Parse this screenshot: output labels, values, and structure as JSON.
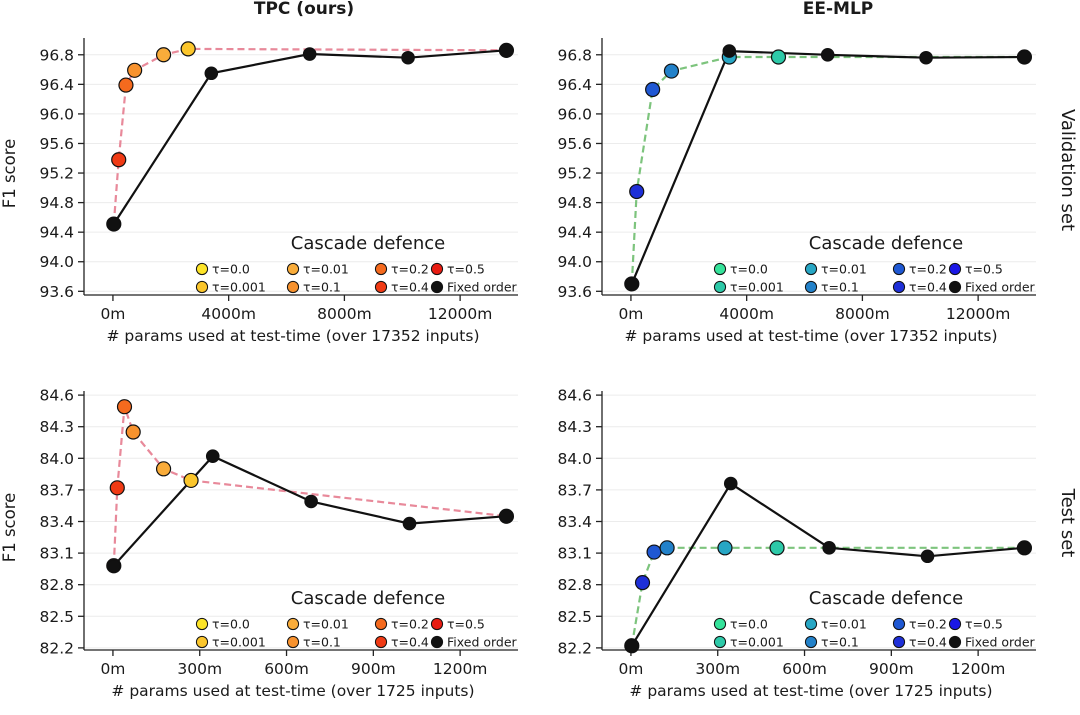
{
  "figure": {
    "column_titles": [
      {
        "text": "TPC (ours)",
        "color": "#dc143c"
      },
      {
        "text": "EE-MLP",
        "color": "#189818"
      }
    ],
    "row_labels": [
      "Validation set",
      "Test set"
    ]
  },
  "chart_data": [
    {
      "type": "line",
      "row": 0,
      "col": 0,
      "ylabel": "F1 score",
      "xlabel": "# params used at test-time (over 17352 inputs)",
      "xlim": [
        -1000,
        14000
      ],
      "ylim": [
        93.55,
        97.0
      ],
      "xticks": [
        0,
        4000,
        8000,
        12000
      ],
      "xtick_labels": [
        "0m",
        "4000m",
        "8000m",
        "12000m"
      ],
      "yticks": [
        93.6,
        94.0,
        94.4,
        94.8,
        95.2,
        95.6,
        96.0,
        96.4,
        96.8
      ],
      "ytick_labels": [
        "93.6",
        "94.0",
        "94.4",
        "94.8",
        "95.2",
        "95.6",
        "96.0",
        "96.4",
        "96.8"
      ],
      "grid": true,
      "cascade_line_color": "#e8899a",
      "series": [
        {
          "name": "Cascade defence",
          "style": "dashed",
          "color": "#e8899a",
          "points": [
            {
              "x": 30,
              "y": 94.51,
              "label": "τ=0.5",
              "color": "#e81c12"
            },
            {
              "x": 200,
              "y": 95.38,
              "label": "τ=0.4",
              "color": "#f03a14"
            },
            {
              "x": 450,
              "y": 96.39,
              "label": "τ=0.2",
              "color": "#f56a1e"
            },
            {
              "x": 750,
              "y": 96.59,
              "label": "τ=0.1",
              "color": "#f7922e"
            },
            {
              "x": 1750,
              "y": 96.8,
              "label": "τ=0.01",
              "color": "#f9ac3a"
            },
            {
              "x": 2600,
              "y": 96.88,
              "label": "τ=0.001",
              "color": "#fbc62c"
            },
            {
              "x": 13600,
              "y": 96.86,
              "label": "τ=0.0",
              "color": "#fde428"
            }
          ]
        },
        {
          "name": "Fixed order",
          "style": "solid",
          "color": "#111111",
          "points": [
            {
              "x": 30,
              "y": 94.51
            },
            {
              "x": 3400,
              "y": 96.55
            },
            {
              "x": 6800,
              "y": 96.81
            },
            {
              "x": 10200,
              "y": 96.76
            },
            {
              "x": 13600,
              "y": 96.86
            }
          ]
        }
      ],
      "legend": {
        "title": "Cascade defence",
        "entries": [
          {
            "label": "τ=0.0",
            "color": "#fde428"
          },
          {
            "label": "τ=0.01",
            "color": "#f9ac3a"
          },
          {
            "label": "τ=0.2",
            "color": "#f56a1e"
          },
          {
            "label": "τ=0.5",
            "color": "#e81c12"
          },
          {
            "label": "τ=0.001",
            "color": "#fbc62c"
          },
          {
            "label": "τ=0.1",
            "color": "#f7922e"
          },
          {
            "label": "τ=0.4",
            "color": "#f03a14"
          },
          {
            "label": "Fixed order",
            "color": "#111111"
          }
        ]
      }
    },
    {
      "type": "line",
      "row": 0,
      "col": 1,
      "ylabel": "",
      "xlabel": "# params used at test-time (over 17352 inputs)",
      "xlim": [
        -1000,
        14000
      ],
      "ylim": [
        93.55,
        97.0
      ],
      "xticks": [
        0,
        4000,
        8000,
        12000
      ],
      "xtick_labels": [
        "0m",
        "4000m",
        "8000m",
        "12000m"
      ],
      "yticks": [
        93.6,
        94.0,
        94.4,
        94.8,
        95.2,
        95.6,
        96.0,
        96.4,
        96.8
      ],
      "ytick_labels": [
        "93.6",
        "94.0",
        "94.4",
        "94.8",
        "95.2",
        "95.6",
        "96.0",
        "96.4",
        "96.8"
      ],
      "grid": true,
      "series": [
        {
          "name": "Cascade defence",
          "style": "dashed",
          "color": "#7dc47d",
          "points": [
            {
              "x": 30,
              "y": 93.7,
              "label": "τ=0.5",
              "color": "#1a17e6"
            },
            {
              "x": 200,
              "y": 94.95,
              "label": "τ=0.4",
              "color": "#1e2fd8"
            },
            {
              "x": 750,
              "y": 96.33,
              "label": "τ=0.2",
              "color": "#1f58d3"
            },
            {
              "x": 1400,
              "y": 96.58,
              "label": "τ=0.1",
              "color": "#2281c9"
            },
            {
              "x": 3400,
              "y": 96.77,
              "label": "τ=0.01",
              "color": "#27a6c4"
            },
            {
              "x": 5100,
              "y": 96.77,
              "label": "τ=0.001",
              "color": "#2dc9a8"
            },
            {
              "x": 13600,
              "y": 96.77,
              "label": "τ=0.0",
              "color": "#35e29a"
            }
          ]
        },
        {
          "name": "Fixed order",
          "style": "solid",
          "color": "#111111",
          "points": [
            {
              "x": 30,
              "y": 93.7
            },
            {
              "x": 3400,
              "y": 96.85
            },
            {
              "x": 6800,
              "y": 96.8
            },
            {
              "x": 10200,
              "y": 96.76
            },
            {
              "x": 13600,
              "y": 96.77
            }
          ]
        }
      ],
      "legend": {
        "title": "Cascade defence",
        "entries": [
          {
            "label": "τ=0.0",
            "color": "#35e29a"
          },
          {
            "label": "τ=0.01",
            "color": "#27a6c4"
          },
          {
            "label": "τ=0.2",
            "color": "#1f58d3"
          },
          {
            "label": "τ=0.5",
            "color": "#1a17e6"
          },
          {
            "label": "τ=0.001",
            "color": "#2dc9a8"
          },
          {
            "label": "τ=0.1",
            "color": "#2281c9"
          },
          {
            "label": "τ=0.4",
            "color": "#1e2fd8"
          },
          {
            "label": "Fixed order",
            "color": "#111111"
          }
        ]
      }
    },
    {
      "type": "line",
      "row": 1,
      "col": 0,
      "ylabel": "F1 score",
      "xlabel": "# params used at test-time (over 1725 inputs)",
      "xlim": [
        -100,
        1400
      ],
      "ylim": [
        82.18,
        84.62
      ],
      "xticks": [
        0,
        300,
        600,
        900,
        1200
      ],
      "xtick_labels": [
        "0m",
        "300m",
        "600m",
        "900m",
        "1200m"
      ],
      "yticks": [
        82.2,
        82.5,
        82.8,
        83.1,
        83.4,
        83.7,
        84.0,
        84.3,
        84.6
      ],
      "ytick_labels": [
        "82.2",
        "82.5",
        "82.8",
        "83.1",
        "83.4",
        "83.7",
        "84.0",
        "84.3",
        "84.6"
      ],
      "grid": true,
      "series": [
        {
          "name": "Cascade defence",
          "style": "dashed",
          "color": "#e8899a",
          "points": [
            {
              "x": 3,
              "y": 82.98,
              "label": "τ=0.5",
              "color": "#e81c12"
            },
            {
              "x": 15,
              "y": 83.72,
              "label": "τ=0.4",
              "color": "#f03a14"
            },
            {
              "x": 40,
              "y": 84.49,
              "label": "τ=0.2",
              "color": "#f56a1e"
            },
            {
              "x": 70,
              "y": 84.25,
              "label": "τ=0.1",
              "color": "#f7922e"
            },
            {
              "x": 175,
              "y": 83.9,
              "label": "τ=0.01",
              "color": "#f9ac3a"
            },
            {
              "x": 270,
              "y": 83.79,
              "label": "τ=0.001",
              "color": "#fbc62c"
            },
            {
              "x": 1360,
              "y": 83.45,
              "label": "τ=0.0",
              "color": "#fde428"
            }
          ]
        },
        {
          "name": "Fixed order",
          "style": "solid",
          "color": "#111111",
          "points": [
            {
              "x": 3,
              "y": 82.98
            },
            {
              "x": 345,
              "y": 84.02
            },
            {
              "x": 685,
              "y": 83.59
            },
            {
              "x": 1025,
              "y": 83.38
            },
            {
              "x": 1360,
              "y": 83.45
            }
          ]
        }
      ],
      "legend": {
        "title": "Cascade defence",
        "entries": [
          {
            "label": "τ=0.0",
            "color": "#fde428"
          },
          {
            "label": "τ=0.01",
            "color": "#f9ac3a"
          },
          {
            "label": "τ=0.2",
            "color": "#f56a1e"
          },
          {
            "label": "τ=0.5",
            "color": "#e81c12"
          },
          {
            "label": "τ=0.001",
            "color": "#fbc62c"
          },
          {
            "label": "τ=0.1",
            "color": "#f7922e"
          },
          {
            "label": "τ=0.4",
            "color": "#f03a14"
          },
          {
            "label": "Fixed order",
            "color": "#111111"
          }
        ]
      }
    },
    {
      "type": "line",
      "row": 1,
      "col": 1,
      "ylabel": "",
      "xlabel": "# params used at test-time (over 1725 inputs)",
      "xlim": [
        -100,
        1400
      ],
      "ylim": [
        82.18,
        84.62
      ],
      "xticks": [
        0,
        300,
        600,
        900,
        1200
      ],
      "xtick_labels": [
        "0m",
        "300m",
        "600m",
        "900m",
        "1200m"
      ],
      "yticks": [
        82.2,
        82.5,
        82.8,
        83.1,
        83.4,
        83.7,
        84.0,
        84.3,
        84.6
      ],
      "ytick_labels": [
        "82.2",
        "82.5",
        "82.8",
        "83.1",
        "83.4",
        "83.7",
        "84.0",
        "84.3",
        "84.6"
      ],
      "grid": true,
      "series": [
        {
          "name": "Cascade defence",
          "style": "dashed",
          "color": "#7dc47d",
          "points": [
            {
              "x": 3,
              "y": 82.22,
              "label": "τ=0.5",
              "color": "#1a17e6"
            },
            {
              "x": 40,
              "y": 82.82,
              "label": "τ=0.4",
              "color": "#1e2fd8"
            },
            {
              "x": 80,
              "y": 83.11,
              "label": "τ=0.2",
              "color": "#1f58d3"
            },
            {
              "x": 125,
              "y": 83.15,
              "label": "τ=0.1",
              "color": "#2281c9"
            },
            {
              "x": 325,
              "y": 83.15,
              "label": "τ=0.01",
              "color": "#27a6c4"
            },
            {
              "x": 505,
              "y": 83.15,
              "label": "τ=0.001",
              "color": "#2dc9a8"
            },
            {
              "x": 1360,
              "y": 83.15,
              "label": "τ=0.0",
              "color": "#35e29a"
            }
          ]
        },
        {
          "name": "Fixed order",
          "style": "solid",
          "color": "#111111",
          "points": [
            {
              "x": 3,
              "y": 82.22
            },
            {
              "x": 345,
              "y": 83.76
            },
            {
              "x": 685,
              "y": 83.15
            },
            {
              "x": 1025,
              "y": 83.07
            },
            {
              "x": 1360,
              "y": 83.15
            }
          ]
        }
      ],
      "legend": {
        "title": "Cascade defence",
        "entries": [
          {
            "label": "τ=0.0",
            "color": "#35e29a"
          },
          {
            "label": "τ=0.01",
            "color": "#27a6c4"
          },
          {
            "label": "τ=0.2",
            "color": "#1f58d3"
          },
          {
            "label": "τ=0.5",
            "color": "#1a17e6"
          },
          {
            "label": "τ=0.001",
            "color": "#2dc9a8"
          },
          {
            "label": "τ=0.1",
            "color": "#2281c9"
          },
          {
            "label": "τ=0.4",
            "color": "#1e2fd8"
          },
          {
            "label": "Fixed order",
            "color": "#111111"
          }
        ]
      }
    }
  ]
}
